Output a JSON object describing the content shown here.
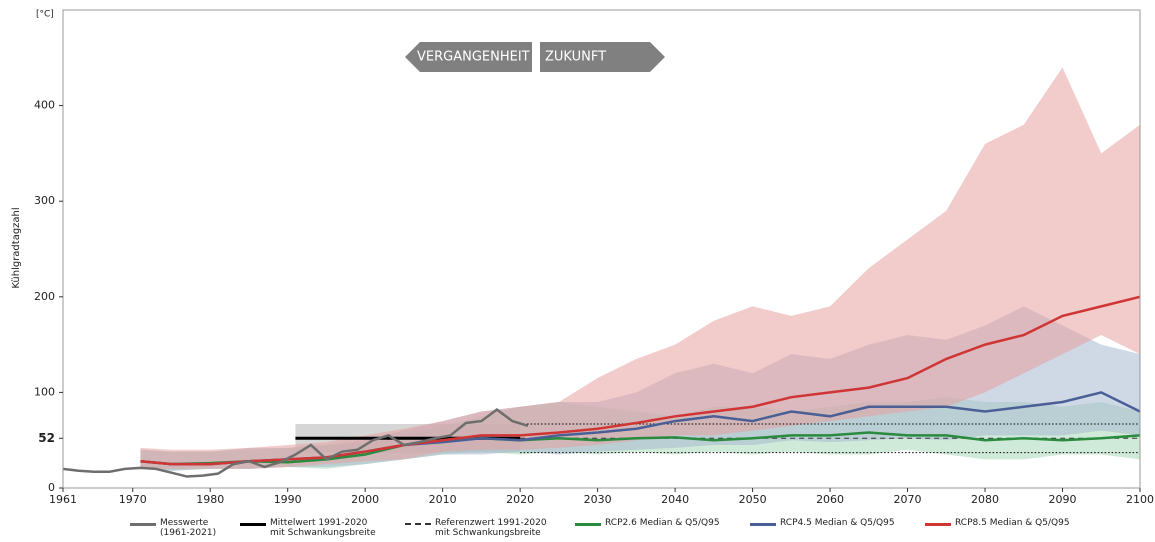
{
  "chart_data": {
    "type": "line",
    "y_unit": "[°C]",
    "y_label": "Kühlgradtagzahl",
    "annotations": [
      "VERGANGENHEIT",
      "ZUKUNFT"
    ],
    "xlim": [
      1961,
      2100
    ],
    "xticks": [
      1961,
      1970,
      1980,
      1990,
      2000,
      2010,
      2020,
      2030,
      2040,
      2050,
      2060,
      2070,
      2080,
      2090,
      2100
    ],
    "ylim": [
      0,
      500
    ],
    "yticks": [
      0,
      52,
      100,
      200,
      300,
      400
    ],
    "measured": {
      "name": "Messwerte\n(1961-2021)",
      "color": "#6e6e6e",
      "x": [
        1961,
        1963,
        1965,
        1967,
        1969,
        1971,
        1973,
        1975,
        1977,
        1979,
        1981,
        1983,
        1985,
        1987,
        1989,
        1991,
        1993,
        1995,
        1997,
        1999,
        2001,
        2003,
        2005,
        2007,
        2009,
        2011,
        2013,
        2015,
        2017,
        2019,
        2021
      ],
      "values": [
        20,
        18,
        17,
        17,
        20,
        21,
        20,
        16,
        12,
        13,
        15,
        25,
        28,
        22,
        27,
        35,
        45,
        30,
        38,
        40,
        50,
        55,
        45,
        48,
        52,
        55,
        68,
        70,
        82,
        70,
        65
      ]
    },
    "mean": {
      "name": "Mittelwert 1991-2020\nmit Schwankungsbreite",
      "color": "#000000",
      "band_color": "#d6d6d6",
      "x": [
        1991,
        2020
      ],
      "value": 52,
      "lower": 37,
      "upper": 67
    },
    "reference": {
      "name": "Referenzwert 1991-2020\nmit Schwankungsbreite",
      "color": "#333333",
      "x": [
        2020,
        2100
      ],
      "value": 52,
      "lower": 37,
      "upper": 67
    },
    "x": [
      1971,
      1975,
      1980,
      1985,
      1990,
      1995,
      2000,
      2005,
      2010,
      2015,
      2020,
      2025,
      2030,
      2035,
      2040,
      2045,
      2050,
      2055,
      2060,
      2065,
      2070,
      2075,
      2080,
      2085,
      2090,
      2095,
      2100
    ],
    "series": [
      {
        "name": "RCP8.5 Median & Q5/Q95",
        "color": "#d03535",
        "band_color": "#e8a0a0",
        "values": [
          28,
          25,
          25,
          28,
          30,
          32,
          38,
          45,
          50,
          55,
          55,
          58,
          62,
          68,
          75,
          80,
          85,
          95,
          100,
          105,
          115,
          135,
          150,
          160,
          180,
          190,
          200
        ],
        "q5": [
          20,
          20,
          20,
          20,
          22,
          25,
          28,
          30,
          38,
          40,
          40,
          42,
          45,
          50,
          55,
          55,
          60,
          65,
          70,
          75,
          80,
          85,
          100,
          120,
          140,
          160,
          140
        ],
        "q95": [
          42,
          40,
          40,
          42,
          45,
          48,
          55,
          62,
          70,
          80,
          85,
          90,
          115,
          135,
          150,
          175,
          190,
          180,
          190,
          230,
          260,
          290,
          360,
          380,
          440,
          350,
          380
        ]
      },
      {
        "name": "RCP4.5 Median & Q5/Q95",
        "color": "#4a5f95",
        "band_color": "#a8b8d0",
        "values": [
          28,
          25,
          25,
          28,
          30,
          32,
          38,
          45,
          48,
          52,
          50,
          55,
          58,
          62,
          70,
          75,
          70,
          80,
          75,
          85,
          85,
          85,
          80,
          85,
          90,
          100,
          80
        ],
        "q5": [
          20,
          18,
          20,
          20,
          22,
          22,
          25,
          30,
          35,
          35,
          38,
          35,
          38,
          40,
          42,
          45,
          45,
          50,
          48,
          50,
          52,
          50,
          55,
          55,
          55,
          60,
          55
        ],
        "q95": [
          40,
          38,
          38,
          42,
          42,
          45,
          50,
          60,
          70,
          80,
          85,
          90,
          90,
          100,
          120,
          130,
          120,
          140,
          135,
          150,
          160,
          155,
          170,
          190,
          170,
          150,
          140
        ]
      },
      {
        "name": "RCP2.6 Median & Q5/Q95",
        "color": "#2a8a3e",
        "band_color": "#a8d8b8",
        "values": [
          28,
          25,
          26,
          28,
          27,
          30,
          35,
          45,
          50,
          52,
          50,
          52,
          50,
          52,
          53,
          50,
          52,
          55,
          55,
          58,
          55,
          55,
          50,
          52,
          50,
          52,
          55
        ],
        "q5": [
          20,
          18,
          20,
          20,
          22,
          20,
          25,
          30,
          35,
          38,
          35,
          38,
          35,
          38,
          35,
          38,
          35,
          38,
          35,
          35,
          40,
          35,
          30,
          30,
          35,
          35,
          30
        ],
        "q95": [
          40,
          38,
          38,
          40,
          42,
          45,
          48,
          55,
          65,
          75,
          85,
          90,
          85,
          80,
          75,
          85,
          85,
          80,
          85,
          90,
          90,
          95,
          90,
          90,
          85,
          90,
          80
        ]
      }
    ]
  }
}
